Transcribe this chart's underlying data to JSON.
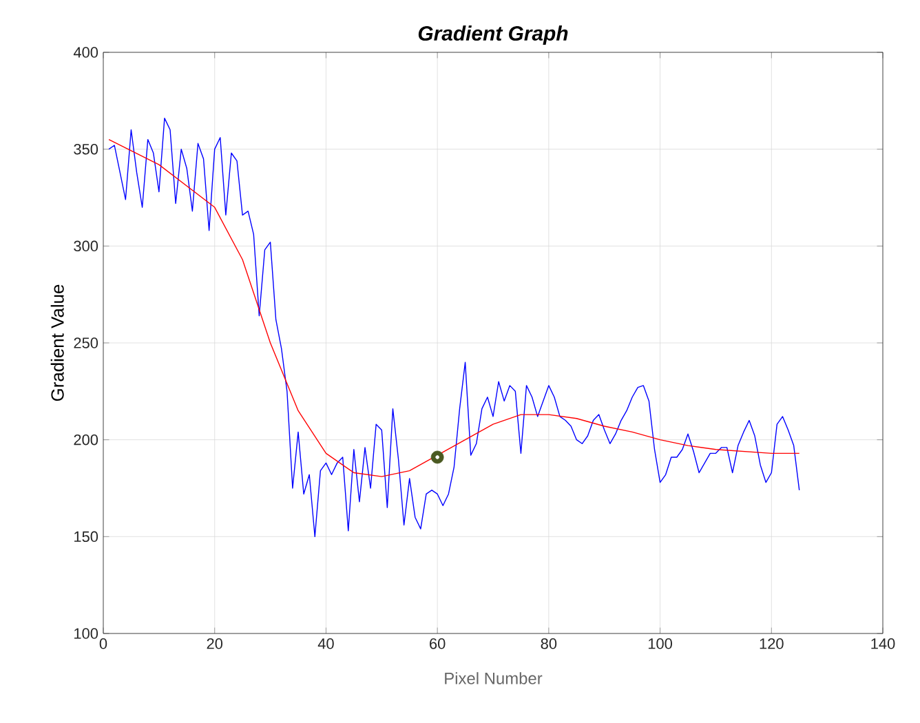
{
  "chart_data": {
    "type": "line",
    "title": "Gradient Graph",
    "xlabel": "Pixel Number",
    "ylabel": "Gradient Value",
    "xlim": [
      0,
      140
    ],
    "xticks": [
      0,
      20,
      40,
      60,
      80,
      100,
      120,
      140
    ],
    "ylim": [
      100,
      400
    ],
    "yticks": [
      100,
      150,
      200,
      250,
      300,
      350,
      400
    ],
    "grid": true,
    "series": [
      {
        "color": "#0000ff",
        "x": [
          1,
          2,
          3,
          4,
          5,
          6,
          7,
          8,
          9,
          10,
          11,
          12,
          13,
          14,
          15,
          16,
          17,
          18,
          19,
          20,
          21,
          22,
          23,
          24,
          25,
          26,
          27,
          28,
          29,
          30,
          31,
          32,
          33,
          34,
          35,
          36,
          37,
          38,
          39,
          40,
          41,
          42,
          43,
          44,
          45,
          46,
          47,
          48,
          49,
          50,
          51,
          52,
          53,
          54,
          55,
          56,
          57,
          58,
          59,
          60,
          61,
          62,
          63,
          64,
          65,
          66,
          67,
          68,
          69,
          70,
          71,
          72,
          73,
          74,
          75,
          76,
          77,
          78,
          79,
          80,
          81,
          82,
          83,
          84,
          85,
          86,
          87,
          88,
          89,
          90,
          91,
          92,
          93,
          94,
          95,
          96,
          97,
          98,
          99,
          100,
          101,
          102,
          103,
          104,
          105,
          106,
          107,
          108,
          109,
          110,
          111,
          112,
          113,
          114,
          115,
          116,
          117,
          118,
          119,
          120,
          121,
          122,
          123,
          124,
          125
        ],
        "values": [
          350,
          352,
          338,
          324,
          360,
          338,
          320,
          355,
          348,
          328,
          366,
          360,
          322,
          350,
          340,
          318,
          353,
          345,
          308,
          350,
          356,
          316,
          348,
          344,
          316,
          318,
          306,
          264,
          298,
          302,
          262,
          247,
          225,
          175,
          204,
          172,
          182,
          150,
          184,
          188,
          182,
          188,
          191,
          153,
          195,
          168,
          196,
          175,
          208,
          205,
          165,
          216,
          190,
          156,
          180,
          160,
          154,
          172,
          174,
          172,
          166,
          172,
          186,
          216,
          240,
          192,
          198,
          216,
          222,
          212,
          230,
          220,
          228,
          225,
          193,
          228,
          222,
          212,
          220,
          228,
          222,
          212,
          210,
          207,
          200,
          198,
          202,
          210,
          213,
          205,
          198,
          203,
          210,
          215,
          222,
          227,
          228,
          220,
          195,
          178,
          182,
          191,
          191,
          195,
          203,
          194,
          183,
          188,
          193,
          193,
          196,
          196,
          183,
          197,
          204,
          210,
          202,
          187,
          178,
          183,
          208,
          212,
          205,
          197,
          174
        ]
      },
      {
        "color": "#ff0000",
        "x": [
          1,
          10,
          20,
          25,
          30,
          35,
          40,
          45,
          50,
          55,
          65,
          70,
          75,
          80,
          85,
          90,
          95,
          100,
          105,
          110,
          115,
          120,
          125
        ],
        "values": [
          355,
          342,
          320,
          293,
          250,
          215,
          193,
          183,
          181,
          184,
          200,
          208,
          213,
          213,
          211,
          207,
          204,
          200,
          197,
          195,
          194,
          193,
          193
        ]
      },
      {
        "type": "scatter",
        "marker": "circle",
        "color": "#4b5a22",
        "x": [
          60
        ],
        "values": [
          191
        ]
      }
    ]
  }
}
